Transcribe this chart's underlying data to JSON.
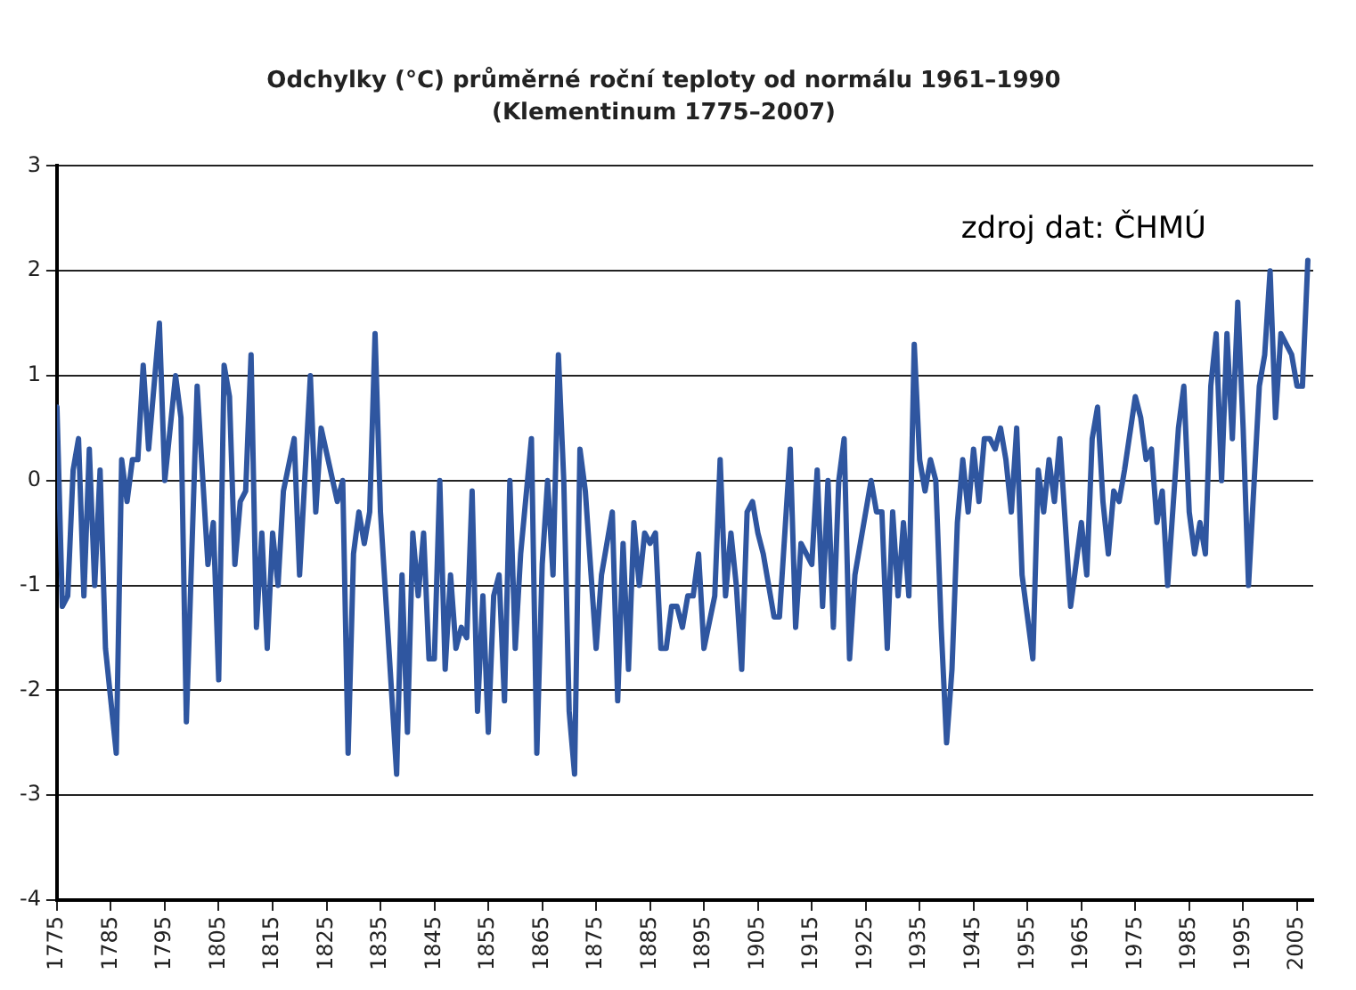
{
  "chart_data": {
    "type": "line",
    "title": "Odchylky (°C) průměrné roční teploty od normálu 1961–1990",
    "subtitle": "(Klementinum 1775–2007)",
    "annotations": [
      "zdroj dat: ČHMÚ"
    ],
    "x": [
      1775,
      1776,
      1777,
      1778,
      1779,
      1780,
      1781,
      1782,
      1783,
      1784,
      1786,
      1787,
      1788,
      1789,
      1790,
      1791,
      1792,
      1794,
      1795,
      1797,
      1798,
      1799,
      1801,
      1803,
      1804,
      1805,
      1806,
      1807,
      1808,
      1809,
      1810,
      1811,
      1812,
      1813,
      1814,
      1815,
      1816,
      1817,
      1819,
      1820,
      1822,
      1823,
      1824,
      1827,
      1828,
      1829,
      1830,
      1831,
      1832,
      1833,
      1834,
      1835,
      1838,
      1839,
      1840,
      1841,
      1842,
      1843,
      1844,
      1845,
      1846,
      1847,
      1848,
      1849,
      1850,
      1851,
      1852,
      1853,
      1854,
      1855,
      1856,
      1857,
      1858,
      1859,
      1860,
      1861,
      1863,
      1864,
      1865,
      1866,
      1867,
      1868,
      1869,
      1870,
      1871,
      1872,
      1873,
      1875,
      1876,
      1878,
      1879,
      1880,
      1881,
      1882,
      1883,
      1884,
      1885,
      1886,
      1887,
      1888,
      1889,
      1890,
      1891,
      1892,
      1893,
      1894,
      1895,
      1897,
      1898,
      1899,
      1900,
      1901,
      1902,
      1903,
      1904,
      1905,
      1906,
      1908,
      1909,
      1911,
      1912,
      1913,
      1914,
      1915,
      1916,
      1917,
      1918,
      1919,
      1920,
      1921,
      1922,
      1923,
      1926,
      1927,
      1928,
      1929,
      1930,
      1931,
      1932,
      1933,
      1934,
      1935,
      1936,
      1937,
      1938,
      1939,
      1940,
      1941,
      1942,
      1943,
      1944,
      1945,
      1946,
      1947,
      1948,
      1949,
      1950,
      1951,
      1952,
      1953,
      1954,
      1956,
      1957,
      1958,
      1959,
      1960,
      1961,
      1963,
      1964,
      1965,
      1966,
      1967,
      1968,
      1969,
      1970,
      1971,
      1972,
      1973,
      1975,
      1976,
      1977,
      1978,
      1979,
      1980,
      1981,
      1983,
      1984,
      1985,
      1986,
      1987,
      1988,
      1989,
      1990,
      1991,
      1992,
      1993,
      1994,
      1995,
      1996,
      1998,
      1999,
      2000,
      2001,
      2002,
      2003,
      2004,
      2005,
      2006,
      2007
    ],
    "series": [
      {
        "color": "#2f56a0",
        "values": [
          0.7,
          -1.2,
          -1.1,
          0.1,
          0.4,
          -1.1,
          0.3,
          -1.0,
          0.1,
          -1.6,
          -2.6,
          0.2,
          -0.2,
          0.2,
          0.2,
          1.1,
          0.3,
          1.5,
          0.0,
          1.0,
          0.6,
          -2.3,
          0.9,
          -0.8,
          -0.4,
          -1.9,
          1.1,
          0.8,
          -0.8,
          -0.2,
          -0.1,
          1.2,
          -1.4,
          -0.5,
          -1.6,
          -0.5,
          -1.0,
          -0.1,
          0.4,
          -0.9,
          1.0,
          -0.3,
          0.5,
          -0.2,
          0.0,
          -2.6,
          -0.7,
          -0.3,
          -0.6,
          -0.3,
          1.4,
          -0.3,
          -2.8,
          -0.9,
          -2.4,
          -0.5,
          -1.1,
          -0.5,
          -1.7,
          -1.7,
          0.0,
          -1.8,
          -0.9,
          -1.6,
          -1.4,
          -1.5,
          -0.1,
          -2.2,
          -1.1,
          -2.4,
          -1.1,
          -0.9,
          -2.1,
          0.0,
          -1.6,
          -0.7,
          0.4,
          -2.6,
          -0.8,
          0.0,
          -0.9,
          1.2,
          0.0,
          -2.2,
          -2.8,
          0.3,
          -0.1,
          -1.6,
          -0.9,
          -0.3,
          -2.1,
          -0.6,
          -1.8,
          -0.4,
          -1.0,
          -0.5,
          -0.6,
          -0.5,
          -1.6,
          -1.6,
          -1.2,
          -1.2,
          -1.4,
          -1.1,
          -1.1,
          -0.7,
          -1.6,
          -1.1,
          0.2,
          -1.1,
          -0.5,
          -1.0,
          -1.8,
          -0.3,
          -0.2,
          -0.5,
          -0.7,
          -1.3,
          -1.3,
          0.3,
          -1.4,
          -0.6,
          -0.7,
          -0.8,
          0.1,
          -1.2,
          0.0,
          -1.4,
          0.0,
          0.4,
          -1.7,
          -0.9,
          0.0,
          -0.3,
          -0.3,
          -1.6,
          -0.3,
          -1.1,
          -0.4,
          -1.1,
          1.3,
          0.2,
          -0.1,
          0.2,
          0.0,
          -1.4,
          -2.5,
          -1.8,
          -0.4,
          0.2,
          -0.3,
          0.3,
          -0.2,
          0.4,
          0.4,
          0.3,
          0.5,
          0.2,
          -0.3,
          0.5,
          -0.9,
          -1.7,
          0.1,
          -0.3,
          0.2,
          -0.2,
          0.4,
          -1.2,
          -0.8,
          -0.4,
          -0.9,
          0.4,
          0.7,
          -0.2,
          -0.7,
          -0.1,
          -0.2,
          0.1,
          0.8,
          0.6,
          0.2,
          0.3,
          -0.4,
          -0.1,
          -1.0,
          0.5,
          0.9,
          -0.3,
          -0.7,
          -0.4,
          -0.7,
          0.9,
          1.4,
          0.0,
          1.4,
          0.4,
          1.7,
          0.5,
          -1.0,
          0.9,
          1.2,
          2.0,
          0.6,
          1.4,
          1.3,
          1.2,
          0.9,
          0.9,
          2.1
        ]
      }
    ],
    "xlim": [
      1775,
      2008
    ],
    "xticks": [
      1775,
      1785,
      1795,
      1805,
      1815,
      1825,
      1835,
      1845,
      1855,
      1865,
      1875,
      1885,
      1895,
      1905,
      1915,
      1925,
      1935,
      1945,
      1955,
      1965,
      1975,
      1985,
      1995,
      2005
    ],
    "ylim": [
      -4,
      3
    ],
    "yticks": [
      -4,
      -3,
      -2,
      -1,
      0,
      1,
      2,
      3
    ],
    "grid": "y",
    "legend": false,
    "marker": "none",
    "line_style": "solid"
  }
}
